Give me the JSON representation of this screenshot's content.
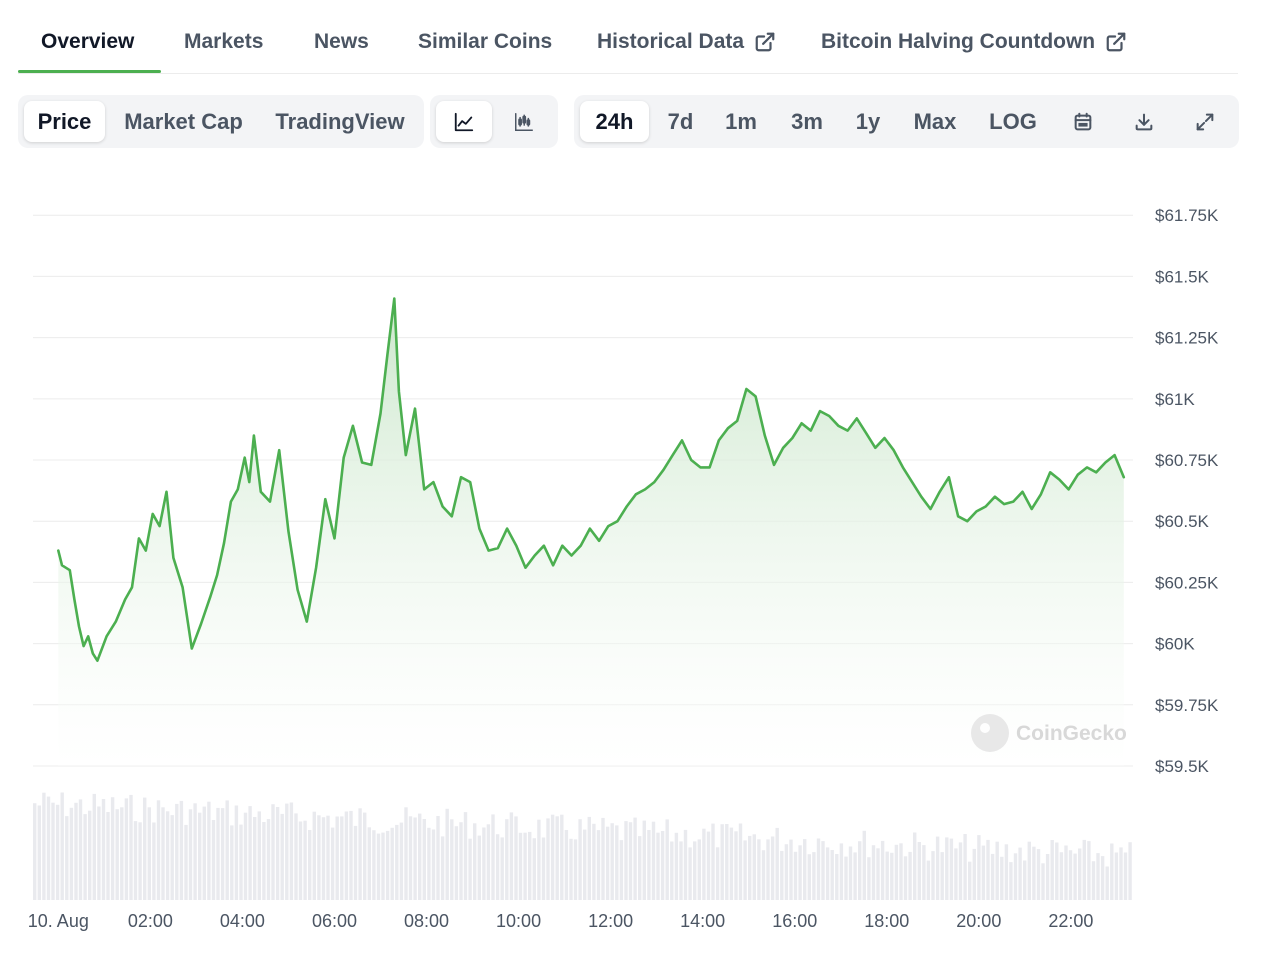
{
  "tabs": [
    {
      "label": "Overview",
      "active": true,
      "external": false
    },
    {
      "label": "Markets",
      "active": false,
      "external": false
    },
    {
      "label": "News",
      "active": false,
      "external": false
    },
    {
      "label": "Similar Coins",
      "active": false,
      "external": false
    },
    {
      "label": "Historical Data",
      "active": false,
      "external": true
    },
    {
      "label": "Bitcoin Halving Countdown",
      "active": false,
      "external": true
    }
  ],
  "metric_toggle": {
    "items": [
      {
        "label": "Price",
        "active": true
      },
      {
        "label": "Market Cap",
        "active": false
      },
      {
        "label": "TradingView",
        "active": false
      }
    ]
  },
  "chart_type_toggle": {
    "items": [
      {
        "icon": "line-chart-icon",
        "active": true
      },
      {
        "icon": "candlestick-chart-icon",
        "active": false
      }
    ]
  },
  "range_toggle": {
    "items": [
      {
        "label": "24h",
        "active": true
      },
      {
        "label": "7d",
        "active": false
      },
      {
        "label": "1m",
        "active": false
      },
      {
        "label": "3m",
        "active": false
      },
      {
        "label": "1y",
        "active": false
      },
      {
        "label": "Max",
        "active": false
      },
      {
        "label": "LOG",
        "active": false
      }
    ],
    "icons": [
      "calendar-icon",
      "download-icon",
      "fullscreen-icon"
    ]
  },
  "watermark": "CoinGecko",
  "colors": {
    "line": "#4caf50",
    "fill_top": "#c9e6c9",
    "grid": "#ececec",
    "volume": "#e9eaee",
    "active_underline": "#4caf50"
  },
  "chart_data": {
    "type": "area",
    "series": [
      {
        "x": [
          0,
          0.08,
          0.25,
          0.35,
          0.45,
          0.55,
          0.65,
          0.75,
          0.85,
          1.05,
          1.25,
          1.45,
          1.6,
          1.75,
          1.9,
          2.05,
          2.2,
          2.35,
          2.5,
          2.7,
          2.9,
          3.1,
          3.3,
          3.45,
          3.6,
          3.75,
          3.9,
          4.05,
          4.15,
          4.25,
          4.4,
          4.6,
          4.8,
          5.0,
          5.2,
          5.4,
          5.6,
          5.8,
          6.0,
          6.2,
          6.4,
          6.6,
          6.8,
          7.0,
          7.15,
          7.3,
          7.4,
          7.55,
          7.75,
          7.95,
          8.15,
          8.35,
          8.55,
          8.75,
          8.95,
          9.15,
          9.35,
          9.55,
          9.75,
          9.95,
          10.15,
          10.35,
          10.55,
          10.75,
          10.95,
          11.15,
          11.35,
          11.55,
          11.75,
          11.95,
          12.15,
          12.35,
          12.55,
          12.75,
          12.95,
          13.15,
          13.35,
          13.55,
          13.75,
          13.95,
          14.15,
          14.35,
          14.55,
          14.75,
          14.95,
          15.15,
          15.35,
          15.55,
          15.75,
          15.95,
          16.15,
          16.35,
          16.55,
          16.75,
          16.95,
          17.15,
          17.35,
          17.55,
          17.75,
          17.95,
          18.15,
          18.35,
          18.55,
          18.75,
          18.95,
          19.15,
          19.35,
          19.55,
          19.75,
          19.95,
          20.15,
          20.35,
          20.55,
          20.75,
          20.95,
          21.15,
          21.35,
          21.55,
          21.75,
          21.95,
          22.15,
          22.35,
          22.55,
          22.75,
          22.95,
          23.15
        ],
        "y": [
          60.38,
          60.32,
          60.3,
          60.18,
          60.07,
          59.99,
          60.03,
          59.96,
          59.93,
          60.03,
          60.09,
          60.18,
          60.23,
          60.43,
          60.38,
          60.53,
          60.48,
          60.62,
          60.35,
          60.23,
          59.98,
          60.08,
          60.19,
          60.28,
          60.41,
          60.58,
          60.63,
          60.76,
          60.66,
          60.85,
          60.62,
          60.58,
          60.79,
          60.46,
          60.22,
          60.09,
          60.31,
          60.59,
          60.43,
          60.76,
          60.89,
          60.74,
          60.73,
          60.94,
          61.18,
          61.41,
          61.03,
          60.77,
          60.96,
          60.63,
          60.66,
          60.56,
          60.52,
          60.68,
          60.66,
          60.47,
          60.38,
          60.39,
          60.47,
          60.4,
          60.31,
          60.36,
          60.4,
          60.32,
          60.4,
          60.36,
          60.4,
          60.47,
          60.42,
          60.48,
          60.5,
          60.56,
          60.61,
          60.63,
          60.66,
          60.71,
          60.77,
          60.83,
          60.75,
          60.72,
          60.72,
          60.83,
          60.88,
          60.91,
          61.04,
          61.01,
          60.85,
          60.73,
          60.8,
          60.84,
          60.9,
          60.87,
          60.95,
          60.93,
          60.89,
          60.87,
          60.92,
          60.86,
          60.8,
          60.84,
          60.79,
          60.72,
          60.66,
          60.6,
          60.55,
          60.62,
          60.68,
          60.52,
          60.5,
          60.54,
          60.56,
          60.6,
          60.57,
          60.58,
          60.62,
          60.55,
          60.61,
          60.7,
          60.67,
          60.63,
          60.69,
          60.72,
          60.7,
          60.74,
          60.77,
          60.68
        ]
      }
    ],
    "ylim": [
      59.5,
      61.8
    ],
    "yticks": [
      "$61.75K",
      "$61.5K",
      "$61.25K",
      "$61K",
      "$60.75K",
      "$60.5K",
      "$60.25K",
      "$60K",
      "$59.75K",
      "$59.5K"
    ],
    "ytick_values": [
      61.75,
      61.5,
      61.25,
      61.0,
      60.75,
      60.5,
      60.25,
      60.0,
      59.75,
      59.5
    ],
    "xlim": [
      -0.55,
      23.35
    ],
    "xticks": [
      "10. Aug",
      "02:00",
      "04:00",
      "06:00",
      "08:00",
      "10:00",
      "12:00",
      "14:00",
      "16:00",
      "18:00",
      "20:00",
      "22:00"
    ],
    "xtick_values": [
      0,
      2,
      4,
      6,
      8,
      10,
      12,
      14,
      16,
      18,
      20,
      22
    ],
    "grid": true,
    "volume_bars": true
  }
}
